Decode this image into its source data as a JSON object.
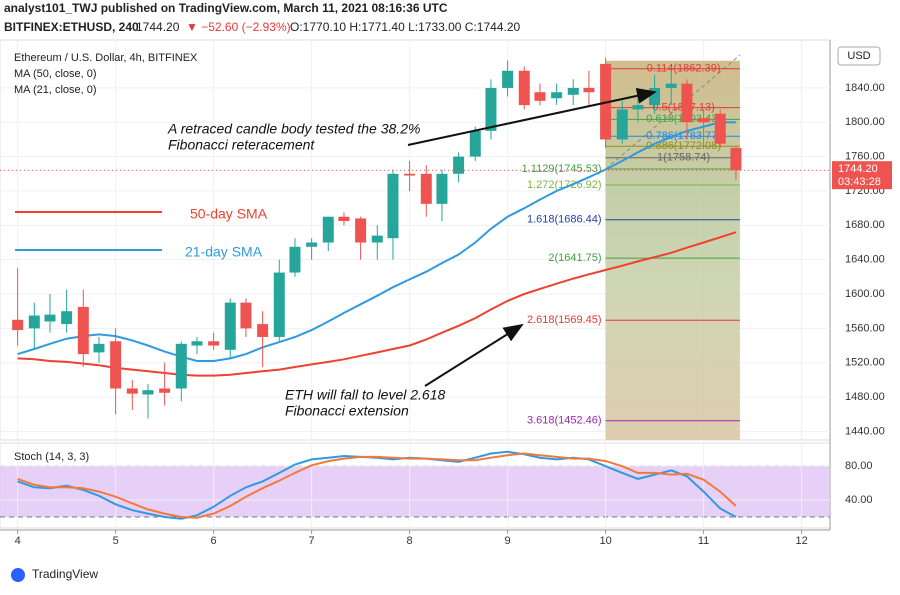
{
  "header": {
    "publisher": "analyst101_TWJ published on TradingView.com, March 11, 2021 08:16:36 UTC",
    "symbol": "BITFINEX:ETHUSD, 240",
    "last": "1744.20",
    "change": "▼ −52.60 (−2.93%)",
    "ohlc": "O:1770.10 H:1771.40 L:1733.00 C:1744.20",
    "brand": "TradingView"
  },
  "chart_data": [
    {
      "type": "candlestick",
      "title": "Ethereum / U.S. Dollar, 4h, BITFINEX",
      "currency": "USD",
      "x": [
        4,
        4.17,
        4.33,
        4.5,
        4.67,
        4.83,
        5,
        5.17,
        5.33,
        5.5,
        5.67,
        5.83,
        6,
        6.17,
        6.33,
        6.5,
        6.67,
        6.83,
        7,
        7.17,
        7.33,
        7.5,
        7.67,
        7.83,
        8,
        8.17,
        8.33,
        8.5,
        8.67,
        8.83,
        9,
        9.17,
        9.33,
        9.5,
        9.67,
        9.83,
        10,
        10.17,
        10.33,
        10.5,
        10.67,
        10.83,
        11,
        11.17,
        11.33
      ],
      "open": [
        1570,
        1560,
        1568,
        1565,
        1585,
        1532,
        1545,
        1490,
        1483,
        1490,
        1490,
        1540,
        1545,
        1535,
        1590,
        1565,
        1550,
        1625,
        1655,
        1660,
        1690,
        1688,
        1660,
        1665,
        1740,
        1740,
        1705,
        1740,
        1760,
        1790,
        1840,
        1860,
        1835,
        1828,
        1832,
        1840,
        1868,
        1780,
        1815,
        1820,
        1840,
        1845,
        1805,
        1810,
        1770.1
      ],
      "high": [
        1630,
        1590,
        1600,
        1605,
        1605,
        1550,
        1560,
        1500,
        1495,
        1520,
        1545,
        1550,
        1555,
        1595,
        1595,
        1580,
        1640,
        1665,
        1665,
        1690,
        1695,
        1690,
        1680,
        1745,
        1755,
        1750,
        1745,
        1765,
        1795,
        1850,
        1872,
        1865,
        1845,
        1845,
        1850,
        1860,
        1875,
        1825,
        1830,
        1855,
        1860,
        1850,
        1815,
        1815,
        1771.4
      ],
      "low": [
        1540,
        1535,
        1555,
        1555,
        1515,
        1520,
        1460,
        1465,
        1455,
        1470,
        1475,
        1530,
        1535,
        1525,
        1550,
        1515,
        1545,
        1620,
        1640,
        1650,
        1680,
        1640,
        1640,
        1640,
        1720,
        1690,
        1685,
        1730,
        1755,
        1780,
        1830,
        1815,
        1820,
        1820,
        1820,
        1820,
        1770,
        1775,
        1800,
        1810,
        1820,
        1780,
        1770,
        1770,
        1733
      ],
      "close": [
        1558,
        1575,
        1576,
        1580,
        1530,
        1542,
        1490,
        1484,
        1488,
        1485,
        1542,
        1545,
        1540,
        1590,
        1560,
        1550,
        1625,
        1655,
        1660,
        1690,
        1685,
        1660,
        1668,
        1740,
        1738,
        1705,
        1740,
        1760,
        1790,
        1840,
        1860,
        1820,
        1825,
        1835,
        1840,
        1835,
        1780,
        1815,
        1820,
        1840,
        1845,
        1800,
        1800,
        1775,
        1744.2
      ],
      "up_color": "#26a69a",
      "down_color": "#ef5350",
      "series": [
        {
          "name": "MA (50, close, 0)",
          "color": "#f0402f",
          "values": [
            1525,
            1524,
            1522,
            1521,
            1519,
            1517,
            1514,
            1512,
            1510,
            1508,
            1506,
            1505,
            1505,
            1506,
            1508,
            1510,
            1512,
            1515,
            1518,
            1521,
            1524,
            1528,
            1532,
            1536,
            1540,
            1547,
            1555,
            1563,
            1572,
            1582,
            1592,
            1600,
            1606,
            1612,
            1618,
            1623,
            1628,
            1633,
            1638,
            1643,
            1648,
            1654,
            1660,
            1666,
            1672
          ]
        },
        {
          "name": "MA (21, close, 0)",
          "color": "#2f9ae0",
          "values": [
            1530,
            1536,
            1542,
            1548,
            1551,
            1553,
            1551,
            1546,
            1540,
            1533,
            1527,
            1522,
            1522,
            1525,
            1530,
            1538,
            1544,
            1550,
            1558,
            1568,
            1578,
            1588,
            1598,
            1608,
            1617,
            1626,
            1636,
            1646,
            1660,
            1676,
            1690,
            1700,
            1710,
            1720,
            1728,
            1736,
            1745,
            1755,
            1765,
            1775,
            1783,
            1790,
            1795,
            1800,
            1800
          ]
        }
      ],
      "sma_labels": [
        {
          "text": "50-day SMA",
          "color": "#f0402f"
        },
        {
          "text": "21-day SMA",
          "color": "#2f9ae0"
        }
      ],
      "fib_levels": [
        {
          "value": 1862.39,
          "label": "0.114(1862.39)",
          "color": "#e53935"
        },
        {
          "value": 1817.13,
          "label": "0.5(1817.13)",
          "color": "#e53935"
        },
        {
          "value": 1803.43,
          "label": "0.618(1803.43)",
          "color": "#43a047"
        },
        {
          "value": 1783.77,
          "label": "0.786(1783.77)",
          "color": "#1e88e5"
        },
        {
          "value": 1772.08,
          "label": "0.886(1772.08)",
          "color": "#8d8d20"
        },
        {
          "value": 1758.74,
          "label": "1(1758.74)",
          "color": "#666666"
        },
        {
          "value": 1745.53,
          "label": "1.1129(1745.53)",
          "color": "#43a047"
        },
        {
          "value": 1726.92,
          "label": "1.272(1726.92)",
          "color": "#7cb342"
        },
        {
          "value": 1686.44,
          "label": "1.618(1686.44)",
          "color": "#1e3fa8"
        },
        {
          "value": 1641.75,
          "label": "2(1641.75)",
          "color": "#43a047"
        },
        {
          "value": 1569.45,
          "label": "2.618(1569.45)",
          "color": "#e53935"
        },
        {
          "value": 1452.46,
          "label": "3.618(1452.46)",
          "color": "#9c27b0"
        }
      ],
      "annotations": [
        "A retraced candle body tested the 38.2%",
        "Fibonacci reteracement",
        "ETH will fall to level 2.618",
        "Fibonacci extension"
      ],
      "last_price": {
        "value": 1744.2,
        "label": "1744.20"
      },
      "countdown": "03:43:28",
      "xlim": [
        3.82,
        12.29
      ],
      "ylim": [
        1430,
        1890
      ],
      "yticks": [
        {
          "value": 1440,
          "label": "1440.00"
        },
        {
          "value": 1480,
          "label": "1480.00"
        },
        {
          "value": 1520,
          "label": "1520.00"
        },
        {
          "value": 1560,
          "label": "1560.00"
        },
        {
          "value": 1600,
          "label": "1600.00"
        },
        {
          "value": 1640,
          "label": "1640.00"
        },
        {
          "value": 1680,
          "label": "1680.00"
        },
        {
          "value": 1720,
          "label": "1720.00"
        },
        {
          "value": 1760,
          "label": "1760.00"
        },
        {
          "value": 1800,
          "label": "1800.00"
        },
        {
          "value": 1840,
          "label": "1840.00"
        }
      ]
    },
    {
      "type": "line",
      "title": "Stoch (14, 3, 3)",
      "x": [
        4,
        4.17,
        4.33,
        4.5,
        4.67,
        4.83,
        5,
        5.17,
        5.33,
        5.5,
        5.67,
        5.83,
        6,
        6.17,
        6.33,
        6.5,
        6.67,
        6.83,
        7,
        7.17,
        7.33,
        7.5,
        7.67,
        7.83,
        8,
        8.17,
        8.33,
        8.5,
        8.67,
        8.83,
        9,
        9.17,
        9.33,
        9.5,
        9.67,
        9.83,
        10,
        10.17,
        10.33,
        10.5,
        10.67,
        10.83,
        11,
        11.17,
        11.33
      ],
      "series": [
        {
          "color": "#2f9ae0",
          "values": [
            62,
            55,
            54,
            57,
            52,
            45,
            35,
            28,
            24,
            20,
            18,
            22,
            32,
            45,
            55,
            62,
            72,
            82,
            88,
            90,
            92,
            91,
            90,
            88,
            90,
            89,
            87,
            85,
            90,
            95,
            97,
            94,
            90,
            88,
            90,
            88,
            80,
            72,
            65,
            70,
            75,
            68,
            50,
            30,
            20
          ]
        },
        {
          "color": "#f07a3a",
          "values": [
            65,
            58,
            55,
            55,
            54,
            50,
            44,
            36,
            29,
            24,
            20,
            19,
            24,
            33,
            44,
            54,
            63,
            72,
            81,
            86,
            89,
            91,
            91,
            90,
            89,
            89,
            88,
            87,
            87,
            90,
            93,
            95,
            93,
            91,
            89,
            89,
            86,
            80,
            72,
            72,
            70,
            71,
            64,
            50,
            33
          ]
        }
      ],
      "bands": [
        20,
        80
      ],
      "xlim": [
        3.82,
        12.29
      ],
      "ylim": [
        7,
        105
      ],
      "xticks": [
        4,
        5,
        6,
        7,
        8,
        9,
        10,
        11,
        12
      ],
      "yticks": [
        {
          "value": 40,
          "label": "40.00"
        },
        {
          "value": 80,
          "label": "80.00"
        }
      ]
    }
  ]
}
